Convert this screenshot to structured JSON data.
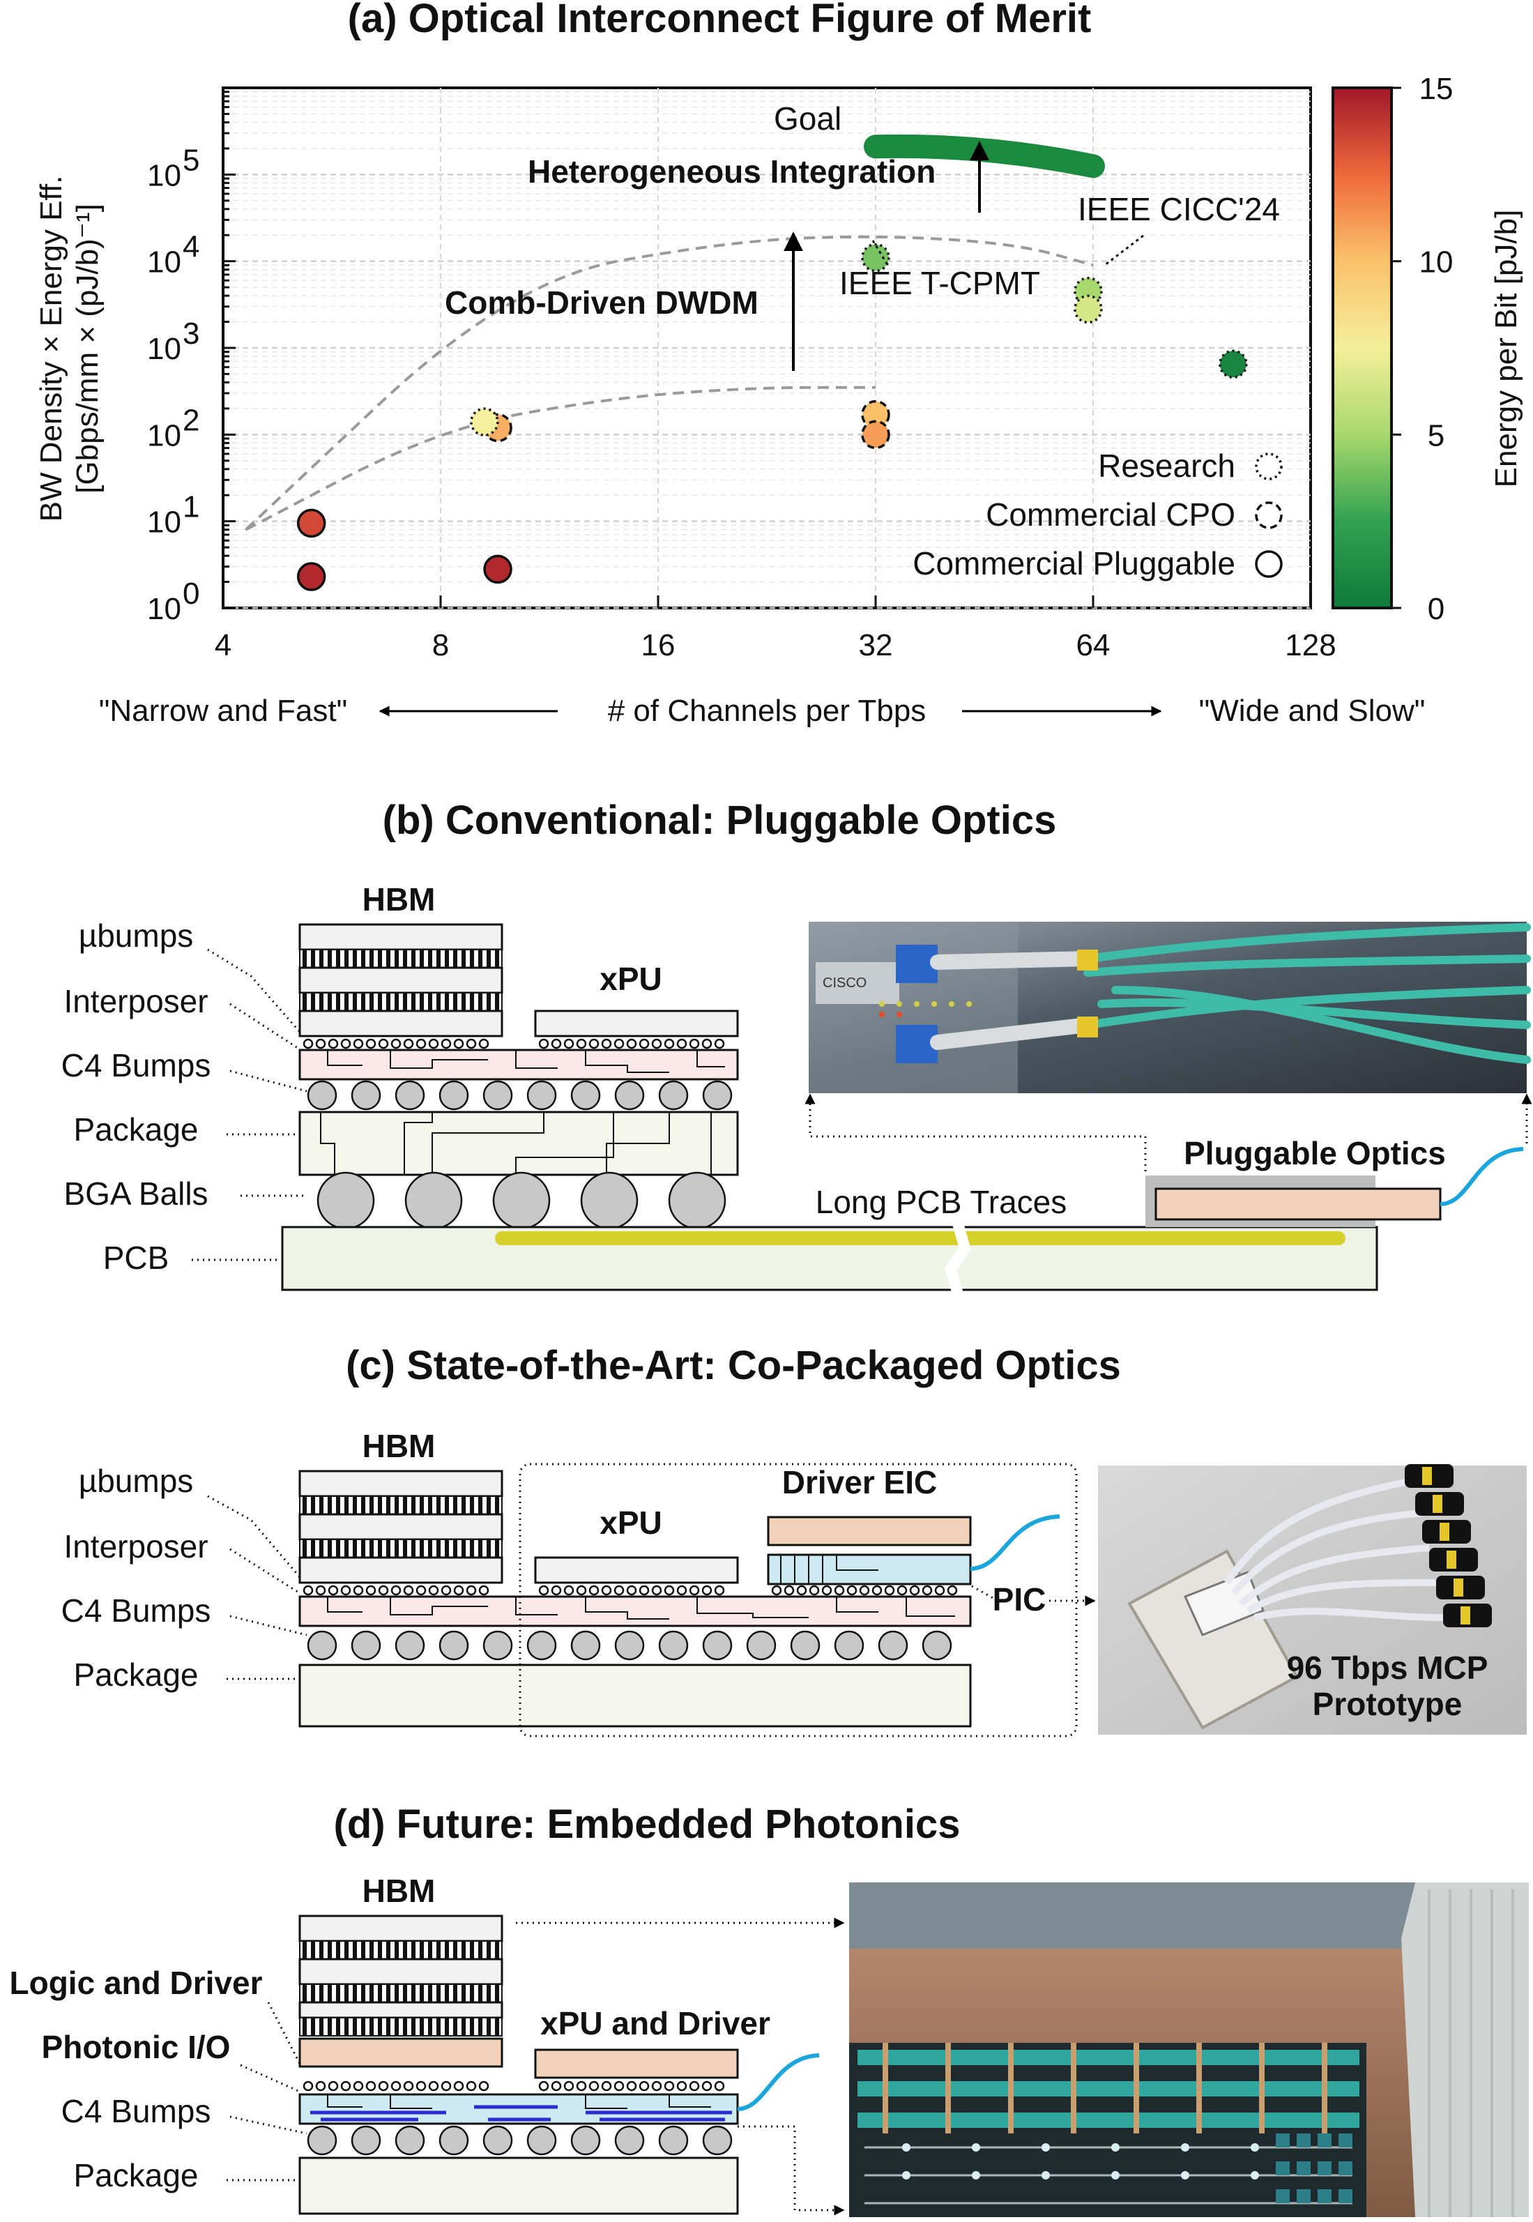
{
  "panel_a": {
    "title": "(a) Optical Interconnect Figure of Merit",
    "ylabel_line1": "BW Density × Energy Eff.",
    "ylabel_line2": "[Gbps/mm × (pJ/b)⁻¹]",
    "colorbar_label": "Energy per Bit [pJ/b]",
    "xlabel": "# of Channels per Tbps",
    "x_left_note": "\"Narrow and Fast\"",
    "x_right_note": "\"Wide and Slow\"",
    "annotations": {
      "goal": "Goal",
      "heterogeneous": "Heterogeneous Integration",
      "comb": "Comb-Driven DWDM",
      "cicc": "IEEE CICC'24",
      "tcpmt": "IEEE T-CPMT"
    },
    "legend": {
      "research": "Research",
      "cpo": "Commercial CPO",
      "pluggable": "Commercial Pluggable",
      "placement": "bottom-right"
    }
  },
  "chart_data": {
    "type": "scatter",
    "title": "(a) Optical Interconnect Figure of Merit",
    "xlabel": "# of Channels per Tbps",
    "ylabel": "BW Density × Energy Eff. [Gbps/mm × (pJ/b)⁻¹]",
    "x_scale": "log2",
    "y_scale": "log10",
    "xlim": [
      4,
      128
    ],
    "ylim": [
      1,
      1000000
    ],
    "x_ticks": [
      "4",
      "8",
      "16",
      "32",
      "64",
      "128"
    ],
    "y_ticks": [
      "10",
      "10",
      "10",
      "10",
      "10",
      "10"
    ],
    "y_tick_exponents": [
      "0",
      "1",
      "2",
      "3",
      "4",
      "5"
    ],
    "grid": true,
    "colorbar": {
      "label": "Energy per Bit [pJ/b]",
      "min": 0,
      "max": 15,
      "ticks": [
        "0",
        "5",
        "10",
        "15"
      ]
    },
    "series": [
      {
        "name": "Commercial Pluggable",
        "points": [
          {
            "x": 5.3,
            "y": 9.5,
            "energy": 13.5
          },
          {
            "x": 5.3,
            "y": 2.3,
            "energy": 14.5
          },
          {
            "x": 9.6,
            "y": 2.8,
            "energy": 14.5
          }
        ]
      },
      {
        "name": "Commercial CPO",
        "points": [
          {
            "x": 9.6,
            "y": 120,
            "energy": 10.5
          },
          {
            "x": 32,
            "y": 170,
            "energy": 10
          },
          {
            "x": 32,
            "y": 100,
            "energy": 11
          }
        ]
      },
      {
        "name": "Research",
        "points": [
          {
            "x": 9.2,
            "y": 140,
            "energy": 7.5
          },
          {
            "x": 32,
            "y": 11000,
            "energy": 4
          },
          {
            "x": 63,
            "y": 4500,
            "energy": 5
          },
          {
            "x": 63,
            "y": 2800,
            "energy": 6.5
          },
          {
            "x": 100,
            "y": 650,
            "energy": 0.7
          }
        ]
      }
    ],
    "goal_line": {
      "x": [
        32,
        64
      ],
      "y": [
        210000,
        125000
      ]
    },
    "trend_lines": [
      {
        "x": [
          4.3,
          10,
          20,
          32,
          50,
          64
        ],
        "y": [
          8,
          6000,
          17000,
          20000,
          16000,
          9000
        ]
      },
      {
        "x": [
          4.3,
          8,
          14,
          22,
          32
        ],
        "y": [
          8,
          120,
          270,
          350,
          350
        ]
      }
    ]
  },
  "panel_b": {
    "title": "(b) Conventional: Pluggable Optics",
    "labels": {
      "hbm": "HBM",
      "xpu": "xPU",
      "ubumps": "µbumps",
      "interposer": "Interposer",
      "c4": "C4 Bumps",
      "package": "Package",
      "bga": "BGA Balls",
      "pcb": "PCB",
      "traces": "Long PCB Traces",
      "pluggable": "Pluggable Optics"
    },
    "photo_text": "CISCO"
  },
  "panel_c": {
    "title": "(c) State-of-the-Art: Co-Packaged Optics",
    "labels": {
      "hbm": "HBM",
      "xpu": "xPU",
      "driver": "Driver EIC",
      "pic": "PIC",
      "ubumps": "µbumps",
      "interposer": "Interposer",
      "c4": "C4 Bumps",
      "package": "Package"
    },
    "photo_caption_line1": "96 Tbps MCP",
    "photo_caption_line2": "Prototype"
  },
  "panel_d": {
    "title": "(d) Future: Embedded Photonics",
    "labels": {
      "hbm": "HBM",
      "logic": "Logic and Driver",
      "photonic": "Photonic I/O",
      "c4": "C4 Bumps",
      "package": "Package",
      "xpu": "xPU and Driver"
    }
  },
  "colors": {
    "die_fill": "#f2f2f2",
    "interposer_fill": "#fbe9e9",
    "package_fill": "#f6f7ec",
    "pcb_fill": "#eef5e6",
    "bump_fill": "#c8c8c8",
    "trace_yellow": "#d8d02a",
    "eic_fill": "#f3d2bc",
    "pic_fill": "#cde9f1",
    "fiber_blue": "#1aa6dd",
    "goal_green": "#1a8a3e"
  }
}
